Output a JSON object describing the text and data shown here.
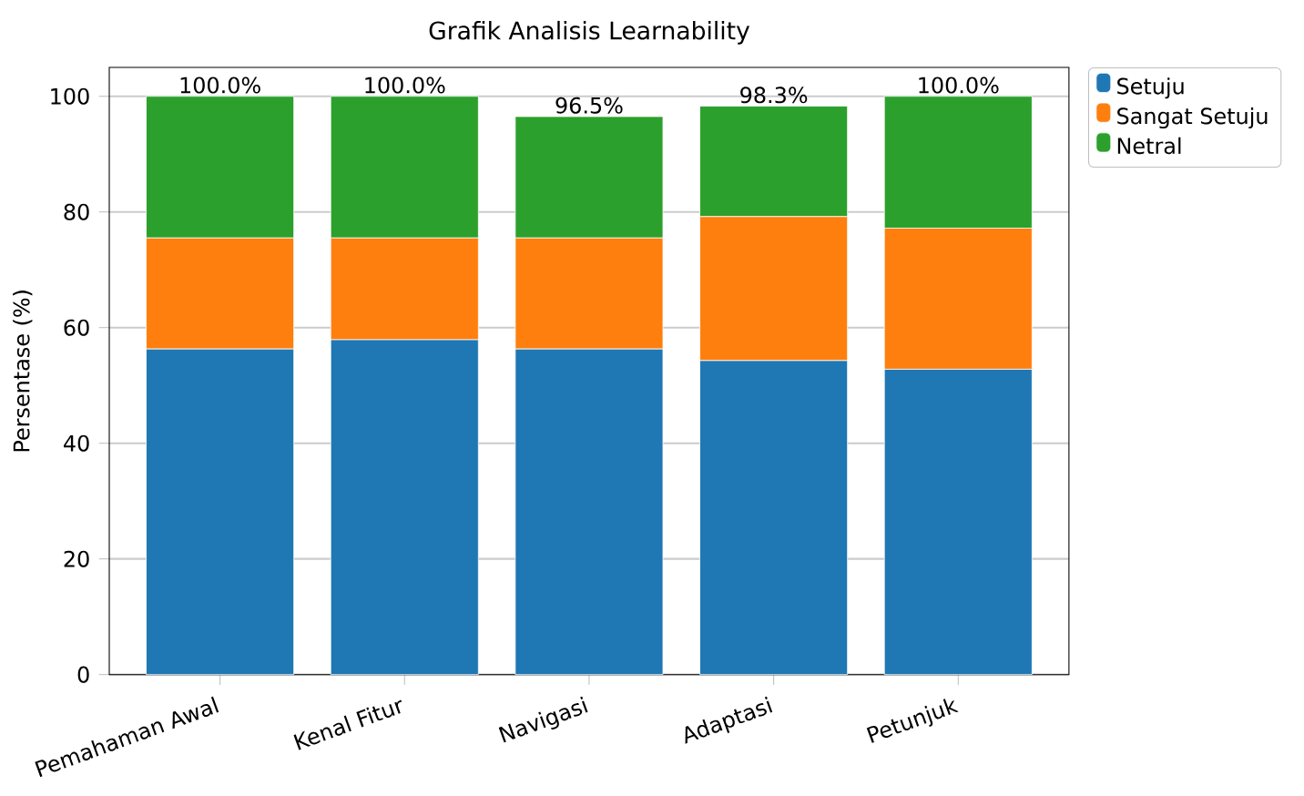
{
  "chart_data": {
    "type": "bar",
    "title": "Grafik Analisis Learnability",
    "ylabel": "Persentase (%)",
    "categories": [
      "Pemahaman Awal",
      "Kenal Fitur",
      "Navigasi",
      "Adaptasi",
      "Petunjuk"
    ],
    "series": [
      {
        "name": "Setuju",
        "color": "#1f77b4",
        "values": [
          56.3,
          57.9,
          56.3,
          54.3,
          52.8
        ]
      },
      {
        "name": "Sangat Setuju",
        "color": "#ff7f0e",
        "values": [
          19.2,
          17.6,
          19.2,
          24.9,
          24.4
        ]
      },
      {
        "name": "Netral",
        "color": "#2ca02c",
        "values": [
          24.5,
          24.5,
          21.0,
          19.1,
          22.8
        ]
      }
    ],
    "stacked": true,
    "totals": [
      "100.0%",
      "100.0%",
      "96.5%",
      "98.3%",
      "100.0%"
    ],
    "ylim": [
      0,
      105
    ],
    "yticks": [
      0,
      20,
      40,
      60,
      80,
      100
    ],
    "grid": "y",
    "legend": "top right"
  }
}
